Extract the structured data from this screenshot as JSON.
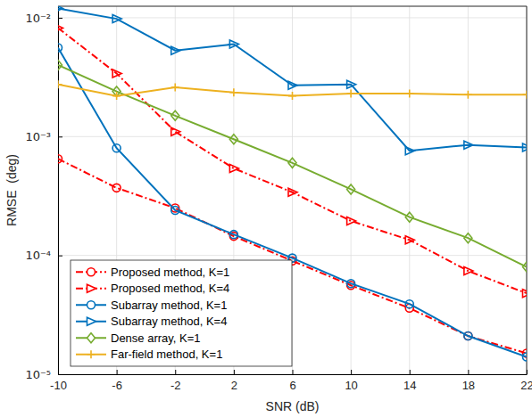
{
  "chart_data": {
    "type": "line",
    "x_label": "SNR (dB)",
    "y_label": "RMSE  (deg)",
    "x": [
      -10,
      -6,
      -2,
      2,
      6,
      10,
      14,
      18,
      22
    ],
    "xlim": [
      -10,
      22
    ],
    "xticks": [
      -10,
      -6,
      -2,
      2,
      6,
      10,
      14,
      18,
      22
    ],
    "ylim": [
      1e-05,
      0.0125
    ],
    "yticks": [
      {
        "value": 1e-05,
        "label": "10⁻⁵"
      },
      {
        "value": 0.0001,
        "label": "10⁻⁴"
      },
      {
        "value": 0.001,
        "label": "10⁻³"
      },
      {
        "value": 0.01,
        "label": "10⁻²"
      }
    ],
    "log": "y",
    "grid": true,
    "legend": "lower left",
    "series": [
      {
        "name": "Proposed method, K=1",
        "color": "#ff0000",
        "marker": "circle",
        "line_style": "dashdot",
        "values": [
          0.00065,
          0.00037,
          0.00025,
          0.000145,
          9e-05,
          5.6e-05,
          3.6e-05,
          2.1e-05,
          1.5e-05
        ]
      },
      {
        "name": "Proposed method, K=4",
        "color": "#ff0000",
        "marker": "triangle-right",
        "line_style": "dashdot",
        "values": [
          0.0082,
          0.0034,
          0.0011,
          0.00054,
          0.00034,
          0.000195,
          0.000135,
          7.4e-05,
          4.8e-05
        ]
      },
      {
        "name": "Subarray method, K=1",
        "color": "#0072bd",
        "marker": "circle",
        "line_style": "solid",
        "values": [
          0.0056,
          0.0008,
          0.00024,
          0.00015,
          9.5e-05,
          5.8e-05,
          3.9e-05,
          2.1e-05,
          1.4e-05
        ]
      },
      {
        "name": "Subarray method, K=4",
        "color": "#0072bd",
        "marker": "triangle-right",
        "line_style": "solid",
        "values": [
          0.012,
          0.0098,
          0.0053,
          0.006,
          0.0027,
          0.00275,
          0.00076,
          0.00085,
          0.00081
        ]
      },
      {
        "name": "Dense array, K=1",
        "color": "#77ac30",
        "marker": "diamond",
        "line_style": "solid",
        "values": [
          0.004,
          0.0024,
          0.0015,
          0.00095,
          0.0006,
          0.00036,
          0.00021,
          0.00014,
          8e-05
        ]
      },
      {
        "name": "Far-field method, K=1",
        "color": "#edb120",
        "marker": "plus",
        "line_style": "solid",
        "values": [
          0.00275,
          0.0022,
          0.0026,
          0.00235,
          0.0022,
          0.0023,
          0.0023,
          0.00225,
          0.00225
        ]
      }
    ]
  }
}
